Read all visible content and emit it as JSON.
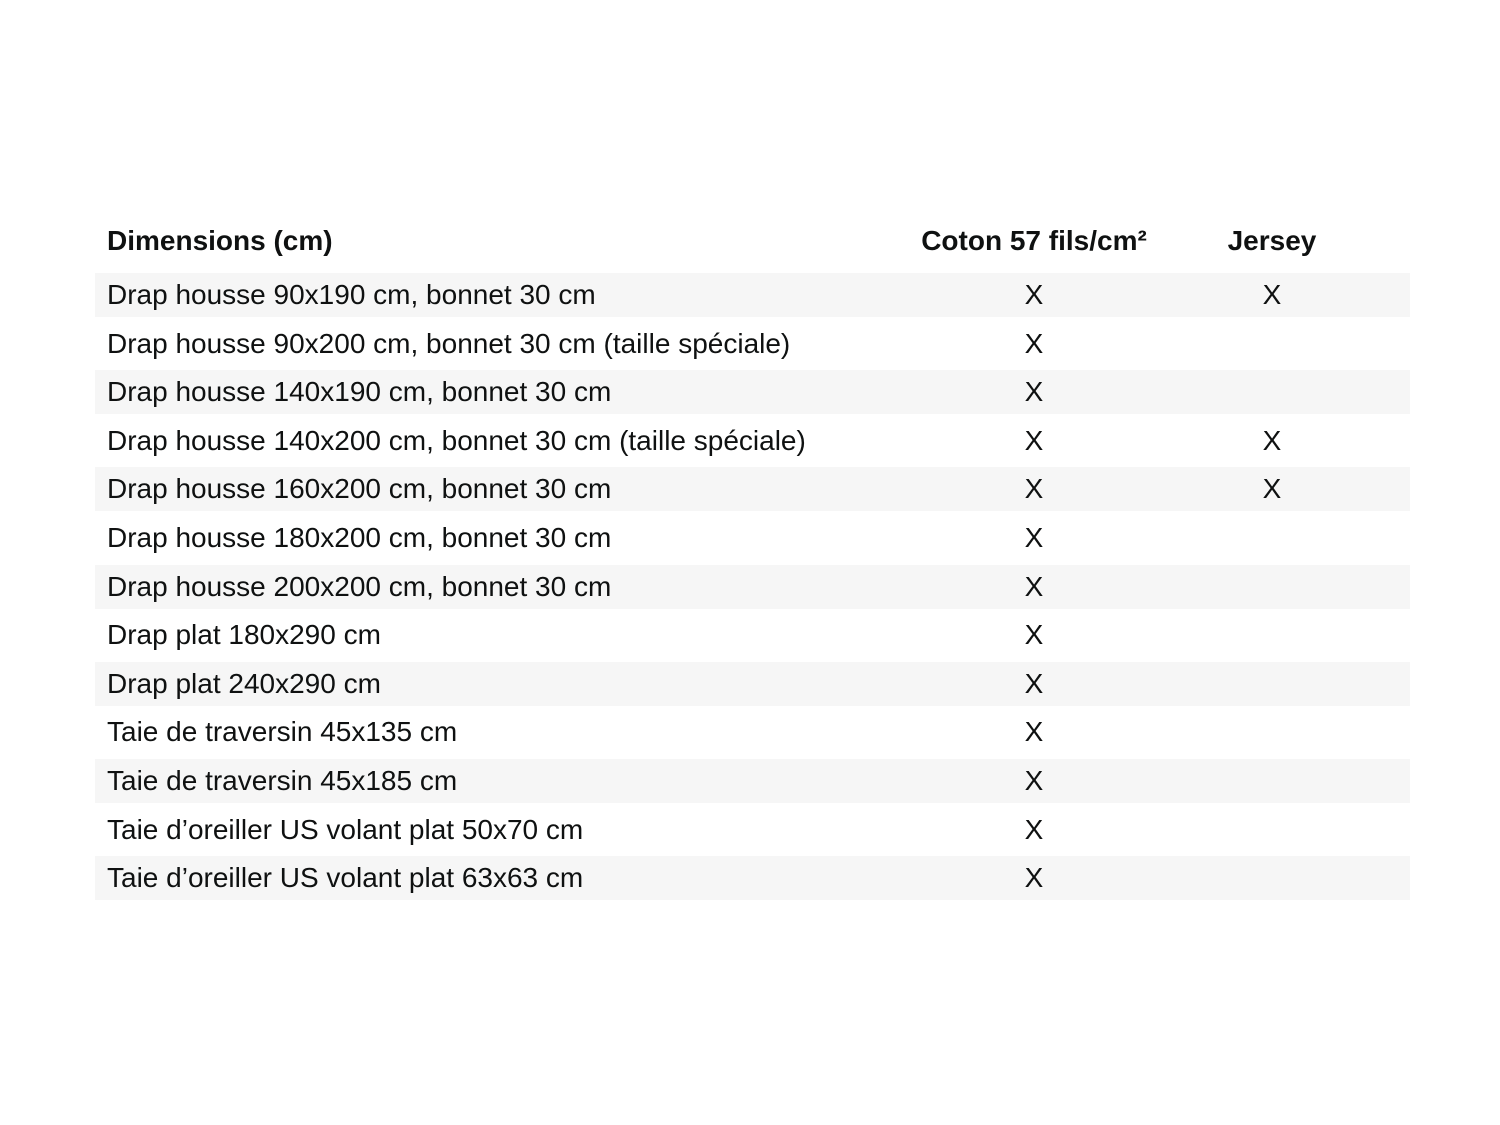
{
  "page": {
    "background_color": "#ffffff",
    "text_color": "#0f1111",
    "row_stripe_color": "#f6f6f6"
  },
  "table": {
    "mark_symbol": "X",
    "columns": [
      {
        "label": "Dimensions (cm)"
      },
      {
        "label": "Coton 57 fils/cm²"
      },
      {
        "label": "Jersey"
      }
    ],
    "rows": [
      {
        "label": "Drap housse 90x190 cm, bonnet 30 cm",
        "coton": "X",
        "jersey": "X"
      },
      {
        "label": "Drap housse 90x200 cm, bonnet 30 cm (taille spéciale)",
        "coton": "X",
        "jersey": ""
      },
      {
        "label": "Drap housse 140x190 cm, bonnet 30 cm",
        "coton": "X",
        "jersey": ""
      },
      {
        "label": "Drap housse 140x200 cm, bonnet 30 cm (taille spéciale)",
        "coton": "X",
        "jersey": "X"
      },
      {
        "label": "Drap housse 160x200 cm, bonnet 30 cm",
        "coton": "X",
        "jersey": "X"
      },
      {
        "label": "Drap housse 180x200 cm, bonnet 30 cm",
        "coton": "X",
        "jersey": ""
      },
      {
        "label": "Drap housse 200x200 cm, bonnet 30 cm",
        "coton": "X",
        "jersey": ""
      },
      {
        "label": "Drap plat 180x290 cm",
        "coton": "X",
        "jersey": ""
      },
      {
        "label": "Drap plat 240x290 cm",
        "coton": "X",
        "jersey": ""
      },
      {
        "label": "Taie de traversin 45x135 cm",
        "coton": "X",
        "jersey": ""
      },
      {
        "label": "Taie de traversin 45x185 cm",
        "coton": "X",
        "jersey": ""
      },
      {
        "label": "Taie d’oreiller US volant plat 50x70 cm",
        "coton": "X",
        "jersey": ""
      },
      {
        "label": "Taie d’oreiller US volant plat 63x63 cm",
        "coton": "X",
        "jersey": ""
      }
    ]
  }
}
